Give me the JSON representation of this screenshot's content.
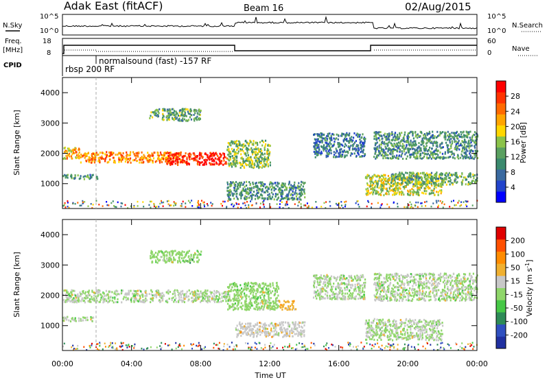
{
  "header": {
    "station": "Adak East (fitACF)",
    "beam": "Beam 16",
    "date": "02/Aug/2015"
  },
  "time_axis": {
    "label": "Time UT",
    "ticks": [
      "00:00",
      "04:00",
      "08:00",
      "12:00",
      "16:00",
      "20:00",
      "00:00"
    ]
  },
  "nsky_panel": {
    "left_label": "N.Sky",
    "right_label": "N.Search",
    "left_ticks": [
      "10^5",
      "10^0"
    ],
    "right_ticks": [
      "10^5",
      "10^0"
    ]
  },
  "freq_panel": {
    "left_label_1": "Freq.",
    "left_label_2": "[MHz]",
    "right_label": "Nave",
    "left_ticks": [
      "18",
      "8"
    ],
    "right_ticks": [
      "60",
      "0"
    ]
  },
  "cpid": {
    "label": "CPID",
    "programs": [
      {
        "name": "rbsp 200 RF",
        "start_hour": 0.0
      },
      {
        "name": "normalsound (fast) -157 RF",
        "start_hour": 1.9
      }
    ]
  },
  "power_colorbar": {
    "label": "Power [dB]",
    "ticks": [
      "28",
      "24",
      "20",
      "16",
      "12",
      "8",
      "4"
    ],
    "colors": [
      "#0000ff",
      "#2244cc",
      "#3a6aa0",
      "#3b8a6e",
      "#5aa060",
      "#8bc34a",
      "#ffd700",
      "#ffa500",
      "#ff6a00",
      "#ff3300",
      "#ff0000"
    ]
  },
  "velocity_colorbar": {
    "label": "Velocity [m s",
    "label_sup": "-1",
    "label_end": "]",
    "ticks": [
      "200",
      "100",
      "50",
      "15",
      "-15",
      "-50",
      "-100",
      "-200"
    ],
    "colors": [
      "#2030a0",
      "#3050c0",
      "#2e8b57",
      "#46c846",
      "#8fd66a",
      "#c8c8c8",
      "#f0b030",
      "#ff8c00",
      "#ff5000",
      "#e00000"
    ]
  },
  "chart_data": [
    {
      "type": "heatmap",
      "title": "Adak East (fitACF) Beam 16 02/Aug/2015 - Power",
      "xlabel": "Time UT",
      "ylabel": "Slant Range [km]",
      "y_tick_values": [
        1000,
        2000,
        3000,
        4000
      ],
      "ylim": [
        180,
        4500
      ],
      "xlim": [
        0,
        24
      ],
      "colorbar_label": "Power [dB]",
      "colorbar_range": [
        0,
        30
      ],
      "scatter_regions": [
        {
          "t_start": 0.0,
          "t_end": 1.0,
          "r_center": 2050,
          "r_width": 400,
          "value_dB": 20
        },
        {
          "t_start": 1.0,
          "t_end": 7.0,
          "r_center": 1900,
          "r_width": 350,
          "value_dB": 22
        },
        {
          "t_start": 6.0,
          "t_end": 9.5,
          "r_center": 1850,
          "r_width": 400,
          "value_dB": 28
        },
        {
          "t_start": 0.0,
          "t_end": 2.0,
          "r_center": 1250,
          "r_width": 150,
          "value_dB": 10
        },
        {
          "t_start": 5.0,
          "t_end": 8.0,
          "r_center": 3300,
          "r_width": 400,
          "value_dB": 12
        },
        {
          "t_start": 9.5,
          "t_end": 12.0,
          "r_center": 2000,
          "r_width": 900,
          "value_dB": 14
        },
        {
          "t_start": 9.5,
          "t_end": 14.0,
          "r_center": 800,
          "r_width": 600,
          "value_dB": 10
        },
        {
          "t_start": 14.5,
          "t_end": 17.5,
          "r_center": 2300,
          "r_width": 800,
          "value_dB": 8
        },
        {
          "t_start": 17.5,
          "t_end": 22.0,
          "r_center": 1000,
          "r_width": 700,
          "value_dB": 16
        },
        {
          "t_start": 18.0,
          "t_end": 24.0,
          "r_center": 2300,
          "r_width": 900,
          "value_dB": 10
        },
        {
          "t_start": 19.0,
          "t_end": 24.0,
          "r_center": 1200,
          "r_width": 400,
          "value_dB": 12
        }
      ]
    },
    {
      "type": "heatmap",
      "title": "Adak East (fitACF) Beam 16 02/Aug/2015 - Velocity",
      "xlabel": "Time UT",
      "ylabel": "Slant Range [km]",
      "y_tick_values": [
        1000,
        2000,
        3000,
        4000
      ],
      "ylim": [
        180,
        4500
      ],
      "xlim": [
        0,
        24
      ],
      "colorbar_label": "Velocity [m s-1]",
      "colorbar_range": [
        -250,
        250
      ],
      "scatter_regions": [
        {
          "t_start": 0.0,
          "t_end": 9.5,
          "r_center": 2000,
          "r_width": 400,
          "value_ms": 0
        },
        {
          "t_start": 0.0,
          "t_end": 2.0,
          "r_center": 1250,
          "r_width": 150,
          "value_ms": 0
        },
        {
          "t_start": 5.0,
          "t_end": 8.0,
          "r_center": 3300,
          "r_width": 400,
          "value_ms": -30
        },
        {
          "t_start": 9.5,
          "t_end": 12.5,
          "r_center": 2000,
          "r_width": 900,
          "value_ms": -10
        },
        {
          "t_start": 10.0,
          "t_end": 14.0,
          "r_center": 900,
          "r_width": 500,
          "value_ms": 40
        },
        {
          "t_start": 12.5,
          "t_end": 13.5,
          "r_center": 1700,
          "r_width": 300,
          "value_ms": 80
        },
        {
          "t_start": 14.5,
          "t_end": 17.5,
          "r_center": 2300,
          "r_width": 800,
          "value_ms": 0
        },
        {
          "t_start": 17.5,
          "t_end": 22.0,
          "r_center": 900,
          "r_width": 700,
          "value_ms": 0
        },
        {
          "t_start": 18.0,
          "t_end": 24.0,
          "r_center": 2300,
          "r_width": 900,
          "value_ms": 0
        }
      ]
    }
  ]
}
